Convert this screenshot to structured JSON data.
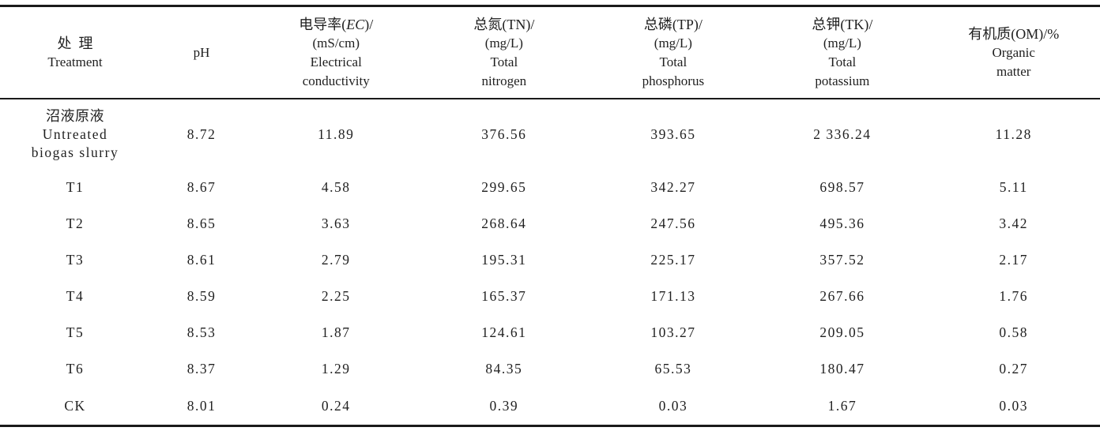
{
  "page": {
    "background": "#ffffff",
    "text_color": "#1f1f1f",
    "rule_color": "#1a1a1a"
  },
  "table": {
    "header": {
      "treatment": {
        "zh": "处理",
        "en": "Treatment"
      },
      "ph": {
        "label": "pH"
      },
      "ec": {
        "zh_prefix": "电导率(",
        "symbol": "EC",
        "zh_suffix": ")/",
        "unit": "(mS/cm)",
        "en_line1": "Electrical",
        "en_line2": "conductivity"
      },
      "tn": {
        "zh": "总氮(TN)/",
        "unit": "(mg/L)",
        "en_line1": "Total",
        "en_line2": "nitrogen"
      },
      "tp": {
        "zh": "总磷(TP)/",
        "unit": "(mg/L)",
        "en_line1": "Total",
        "en_line2": "phosphorus"
      },
      "tk": {
        "zh": "总钾(TK)/",
        "unit": "(mg/L)",
        "en_line1": "Total",
        "en_line2": "potassium"
      },
      "om": {
        "zh": "有机质(OM)/%",
        "en_line1": "Organic",
        "en_line2": "matter"
      }
    },
    "rows": [
      {
        "label_lines": [
          "沼液原液",
          "Untreated",
          "biogas slurry"
        ],
        "values": [
          "8.72",
          "11.89",
          "376.56",
          "393.65",
          "2 336.24",
          "11.28"
        ]
      },
      {
        "label_lines": [
          "T1"
        ],
        "values": [
          "8.67",
          "4.58",
          "299.65",
          "342.27",
          "698.57",
          "5.11"
        ]
      },
      {
        "label_lines": [
          "T2"
        ],
        "values": [
          "8.65",
          "3.63",
          "268.64",
          "247.56",
          "495.36",
          "3.42"
        ]
      },
      {
        "label_lines": [
          "T3"
        ],
        "values": [
          "8.61",
          "2.79",
          "195.31",
          "225.17",
          "357.52",
          "2.17"
        ]
      },
      {
        "label_lines": [
          "T4"
        ],
        "values": [
          "8.59",
          "2.25",
          "165.37",
          "171.13",
          "267.66",
          "1.76"
        ]
      },
      {
        "label_lines": [
          "T5"
        ],
        "values": [
          "8.53",
          "1.87",
          "124.61",
          "103.27",
          "209.05",
          "0.58"
        ]
      },
      {
        "label_lines": [
          "T6"
        ],
        "values": [
          "8.37",
          "1.29",
          "84.35",
          "65.53",
          "180.47",
          "0.27"
        ]
      },
      {
        "label_lines": [
          "CK"
        ],
        "values": [
          "8.01",
          "0.24",
          "0.39",
          "0.03",
          "1.67",
          "0.03"
        ]
      }
    ]
  }
}
